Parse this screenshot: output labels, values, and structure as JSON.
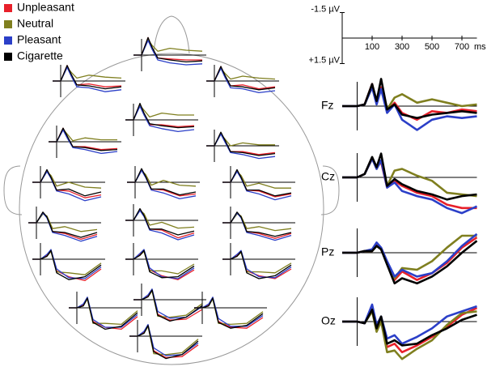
{
  "chart_data": {
    "type": "erp",
    "series": [
      {
        "name": "Unpleasant",
        "color": "#e8202a"
      },
      {
        "name": "Neutral",
        "color": "#7f7f1f"
      },
      {
        "name": "Pleasant",
        "color": "#2b3fc8"
      },
      {
        "name": "Cigarette",
        "color": "#000000"
      }
    ],
    "xlim": [
      -100,
      800
    ],
    "xticks": [
      100,
      300,
      500,
      700
    ],
    "x_unit": "ms",
    "ylim": [
      -1.5,
      1.5
    ],
    "yticks": [
      {
        "value": -1.5,
        "label": "-1.5 µV"
      },
      {
        "value": 1.5,
        "label": "+1.5 µV"
      }
    ],
    "y_inverted": true,
    "x": [
      -100,
      0,
      50,
      100,
      130,
      160,
      200,
      250,
      300,
      400,
      500,
      600,
      700,
      800
    ],
    "panels": [
      {
        "label": "Fz",
        "values": [
          [
            0,
            0,
            -0.1,
            -1.3,
            -0.2,
            -1.1,
            0.3,
            -0.2,
            0.4,
            0.8,
            0.3,
            0.4,
            0.2,
            0.3
          ],
          [
            0,
            0,
            -0.1,
            -1.1,
            -0.2,
            -1.0,
            0.2,
            -0.5,
            -0.7,
            -0.2,
            -0.4,
            -0.2,
            0,
            -0.1
          ],
          [
            0,
            0,
            -0.1,
            -1.1,
            -0.1,
            -1.0,
            0.4,
            -0.1,
            0.8,
            1.4,
            0.8,
            0.6,
            0.7,
            0.6
          ],
          [
            0,
            0,
            -0.1,
            -1.3,
            -0.3,
            -1.6,
            0.2,
            -0.1,
            0.5,
            0.7,
            0.5,
            0.4,
            0.3,
            0.4
          ]
        ]
      },
      {
        "label": "Cz",
        "values": [
          [
            0,
            0,
            -0.2,
            -1.1,
            -0.6,
            -0.9,
            0.6,
            0.2,
            0.5,
            0.9,
            1.1,
            1.6,
            1.8,
            1.8
          ],
          [
            0,
            0,
            -0.2,
            -1.1,
            -0.5,
            -1.0,
            0.5,
            -0.4,
            -0.5,
            -0.1,
            0.2,
            0.9,
            1.0,
            1.1
          ],
          [
            0,
            0,
            -0.2,
            -1.1,
            -0.5,
            -1.0,
            0.6,
            0.3,
            0.8,
            1.1,
            1.3,
            1.8,
            2.1,
            1.7
          ],
          [
            0,
            0,
            -0.2,
            -1.2,
            -0.6,
            -1.4,
            0.5,
            0.1,
            0.4,
            0.8,
            1.0,
            1.3,
            1.1,
            1.0
          ]
        ]
      },
      {
        "label": "Pz",
        "values": [
          [
            0,
            0,
            -0.1,
            -0.1,
            -0.5,
            -0.2,
            0.6,
            1.6,
            1.1,
            1.6,
            1.2,
            0.6,
            -0.3,
            -0.9
          ],
          [
            0,
            0,
            -0.1,
            -0.1,
            -0.4,
            -0.2,
            0.6,
            1.5,
            0.9,
            1.0,
            0.5,
            -0.3,
            -1.0,
            -1.0
          ],
          [
            0,
            0,
            -0.1,
            -0.2,
            -0.6,
            -0.3,
            0.5,
            1.4,
            1.0,
            1.4,
            1.2,
            0.5,
            -0.4,
            -1.1
          ],
          [
            0,
            0,
            -0.1,
            -0.1,
            -0.4,
            -0.2,
            0.7,
            1.8,
            1.5,
            1.8,
            1.4,
            0.8,
            0,
            -0.7
          ]
        ]
      },
      {
        "label": "Oz",
        "values": [
          [
            0,
            0,
            0.1,
            -0.8,
            0.5,
            -0.2,
            1.5,
            1.3,
            1.8,
            1.4,
            0.9,
            0.3,
            -0.4,
            -0.8
          ],
          [
            0,
            0,
            0.1,
            -0.6,
            0.6,
            0,
            1.8,
            1.7,
            2.2,
            1.6,
            1.1,
            0.2,
            -0.5,
            -0.6
          ],
          [
            0,
            0,
            0.1,
            -1.0,
            0.2,
            -0.3,
            1.0,
            0.8,
            1.3,
            0.9,
            0.4,
            -0.3,
            -0.6,
            -0.9
          ],
          [
            0,
            0,
            0.1,
            -0.7,
            0.4,
            -0.3,
            1.3,
            1.1,
            1.4,
            1.3,
            0.8,
            0.4,
            -0.1,
            -0.4
          ]
        ]
      }
    ],
    "head_x": [
      -100,
      0,
      80,
      130,
      200,
      350,
      550,
      750
    ],
    "head_panels": [
      [
        [
          0,
          0,
          -1.6,
          -0.6,
          0.4,
          0.3,
          0.6,
          0.5
        ],
        [
          0,
          0,
          -1.4,
          -0.9,
          -0.3,
          -0.6,
          -0.4,
          -0.3
        ],
        [
          0,
          0,
          -1.4,
          -0.5,
          0.6,
          0.7,
          1.1,
          0.9
        ],
        [
          0,
          0,
          -1.6,
          -0.7,
          0.4,
          0.5,
          0.8,
          0.6
        ]
      ],
      [
        [
          0,
          0,
          -1.8,
          -0.7,
          0.3,
          0.4,
          0.5,
          0.5
        ],
        [
          0,
          0,
          -1.6,
          -1.0,
          -0.4,
          -0.7,
          -0.5,
          -0.4
        ],
        [
          0,
          0,
          -1.5,
          -0.6,
          0.5,
          0.8,
          1.0,
          0.9
        ],
        [
          0,
          0,
          -1.8,
          -0.8,
          0.3,
          0.5,
          0.7,
          0.6
        ]
      ],
      [
        [
          0,
          0,
          -1.5,
          -0.5,
          0.5,
          0.4,
          0.8,
          0.6
        ],
        [
          0,
          0,
          -1.3,
          -0.8,
          -0.2,
          -0.5,
          -0.3,
          -0.2
        ],
        [
          0,
          0,
          -1.3,
          -0.4,
          0.7,
          0.8,
          1.2,
          1.0
        ],
        [
          0,
          0,
          -1.5,
          -0.6,
          0.5,
          0.6,
          0.9,
          0.7
        ]
      ],
      [
        [
          0,
          0,
          -1.4,
          -0.5,
          0.5,
          0.5,
          0.8,
          0.7
        ],
        [
          0,
          0,
          -1.3,
          -0.8,
          -0.1,
          -0.4,
          -0.2,
          -0.2
        ],
        [
          0,
          0,
          -1.2,
          -0.4,
          0.6,
          0.8,
          1.2,
          1.0
        ],
        [
          0,
          0,
          -1.4,
          -0.6,
          0.5,
          0.6,
          0.9,
          0.8
        ]
      ],
      [
        [
          0,
          0,
          -1.6,
          -0.6,
          0.5,
          0.5,
          0.7,
          0.6
        ],
        [
          0,
          0,
          -1.5,
          -1.0,
          -0.3,
          -0.7,
          -0.5,
          -0.5
        ],
        [
          0,
          0,
          -1.4,
          -0.5,
          0.6,
          0.9,
          1.2,
          1.0
        ],
        [
          0,
          0,
          -1.7,
          -0.7,
          0.4,
          0.6,
          0.8,
          0.7
        ]
      ],
      [
        [
          0,
          0,
          -1.3,
          -0.5,
          0.6,
          0.6,
          0.9,
          0.7
        ],
        [
          0,
          0,
          -1.2,
          -0.7,
          0,
          -0.3,
          -0.1,
          -0.1
        ],
        [
          0,
          0,
          -1.2,
          -0.4,
          0.7,
          0.9,
          1.3,
          1.1
        ],
        [
          0,
          0,
          -1.4,
          -0.6,
          0.6,
          0.7,
          1.0,
          0.8
        ]
      ],
      [
        [
          0,
          0,
          -1.2,
          -0.5,
          0.8,
          0.9,
          1.6,
          1.3
        ],
        [
          0,
          0,
          -1.1,
          -0.7,
          0.4,
          0,
          0.5,
          0.6
        ],
        [
          0,
          0,
          -1.1,
          -0.4,
          0.9,
          1.2,
          1.9,
          1.5
        ],
        [
          0,
          0,
          -1.3,
          -0.5,
          0.8,
          0.7,
          1.4,
          1.0
        ]
      ],
      [
        [
          0,
          0,
          -1.3,
          -0.6,
          0.7,
          0.8,
          1.4,
          1.2
        ],
        [
          0,
          0,
          -1.2,
          -0.8,
          0.3,
          -0.2,
          0.3,
          0.4
        ],
        [
          0,
          0,
          -1.2,
          -0.5,
          0.8,
          1.1,
          1.7,
          1.4
        ],
        [
          0,
          0,
          -1.4,
          -0.6,
          0.7,
          0.7,
          1.3,
          1.0
        ]
      ],
      [
        [
          0,
          0,
          -1.2,
          -0.5,
          0.8,
          0.9,
          1.5,
          1.2
        ],
        [
          0,
          0,
          -1.1,
          -0.7,
          0.4,
          0.1,
          0.6,
          0.6
        ],
        [
          0,
          0,
          -1.1,
          -0.4,
          0.9,
          1.2,
          1.8,
          1.4
        ],
        [
          0,
          0,
          -1.3,
          -0.5,
          0.8,
          0.8,
          1.4,
          1.1
        ]
      ],
      [
        [
          0,
          0,
          -1.0,
          -0.6,
          0.9,
          1.1,
          1.7,
          1.2
        ],
        [
          0,
          0,
          -0.9,
          -0.7,
          0.6,
          0.4,
          0.9,
          0.7
        ],
        [
          0,
          0,
          -1.0,
          -0.5,
          1.0,
          1.3,
          1.9,
          1.4
        ],
        [
          0,
          0,
          -1.1,
          -0.6,
          0.9,
          1.0,
          1.5,
          1.0
        ]
      ],
      [
        [
          0,
          0,
          -1.1,
          -0.5,
          0.9,
          1.0,
          1.8,
          1.3
        ],
        [
          0,
          0,
          -1.0,
          -0.7,
          0.5,
          0.2,
          0.8,
          0.7
        ],
        [
          0,
          0,
          -1.0,
          -0.4,
          1.0,
          1.3,
          2.0,
          1.5
        ],
        [
          0,
          0,
          -1.2,
          -0.5,
          0.9,
          0.9,
          1.5,
          1.1
        ]
      ],
      [
        [
          0,
          0,
          -1.0,
          -0.6,
          0.9,
          1.1,
          1.6,
          1.1
        ],
        [
          0,
          0,
          -0.9,
          -0.7,
          0.6,
          0.4,
          0.8,
          0.6
        ],
        [
          0,
          0,
          -1.0,
          -0.5,
          1.0,
          1.3,
          1.8,
          1.3
        ],
        [
          0,
          0,
          -1.1,
          -0.6,
          0.9,
          1.0,
          1.4,
          1.0
        ]
      ],
      [
        [
          0,
          0,
          -0.4,
          -0.9,
          1.2,
          1.8,
          2.2,
          1.0
        ],
        [
          0,
          0,
          -0.3,
          -0.8,
          1.3,
          1.4,
          1.6,
          0.4
        ],
        [
          0,
          0,
          -0.5,
          -1.0,
          1.0,
          1.9,
          2.0,
          0.8
        ],
        [
          0,
          0,
          -0.3,
          -0.9,
          1.4,
          2.1,
          1.8,
          0.6
        ]
      ],
      [
        [
          0,
          0,
          -0.5,
          -0.9,
          1.1,
          1.7,
          2.1,
          1.1
        ],
        [
          0,
          0,
          -0.4,
          -0.8,
          1.2,
          1.2,
          1.5,
          0.5
        ],
        [
          0,
          0,
          -0.6,
          -1.0,
          0.9,
          1.8,
          2.0,
          0.9
        ],
        [
          0,
          0,
          -0.4,
          -0.9,
          1.3,
          1.9,
          1.8,
          0.7
        ]
      ],
      [
        [
          0,
          0,
          -0.4,
          -0.8,
          1.2,
          1.7,
          2.0,
          1.0
        ],
        [
          0,
          0,
          -0.3,
          -0.7,
          1.3,
          1.3,
          1.4,
          0.4
        ],
        [
          0,
          0,
          -0.5,
          -0.9,
          1.0,
          1.8,
          1.9,
          0.8
        ],
        [
          0,
          0,
          -0.3,
          -0.8,
          1.4,
          2.0,
          1.7,
          0.6
        ]
      ],
      [
        [
          0,
          0,
          -0.3,
          -1.0,
          1.4,
          2.0,
          2.2,
          0.9
        ],
        [
          0,
          0,
          -0.2,
          -0.9,
          1.6,
          1.6,
          1.7,
          0.3
        ],
        [
          0,
          0,
          -0.4,
          -1.1,
          1.2,
          2.0,
          2.0,
          0.7
        ],
        [
          0,
          0,
          -0.2,
          -1.0,
          1.5,
          2.2,
          1.9,
          0.5
        ]
      ],
      [
        [
          0,
          0,
          -0.4,
          -1.0,
          1.5,
          2.1,
          2.0,
          1.0
        ],
        [
          0,
          0,
          -0.3,
          -0.9,
          1.7,
          1.8,
          1.6,
          0.4
        ],
        [
          0,
          0,
          -0.5,
          -1.1,
          1.2,
          1.9,
          1.8,
          0.7
        ],
        [
          0,
          0,
          -0.3,
          -1.0,
          1.6,
          2.2,
          1.8,
          0.6
        ]
      ],
      [
        [
          0,
          0,
          -0.3,
          -1.0,
          1.4,
          2.0,
          2.1,
          1.0
        ],
        [
          0,
          0,
          -0.2,
          -0.9,
          1.6,
          1.7,
          1.6,
          0.4
        ],
        [
          0,
          0,
          -0.4,
          -1.1,
          1.1,
          1.9,
          1.9,
          0.8
        ],
        [
          0,
          0,
          -0.2,
          -1.0,
          1.5,
          2.1,
          1.8,
          0.6
        ]
      ],
      [
        [
          0,
          0,
          -0.4,
          -1.1,
          1.5,
          2.2,
          2.1,
          0.9
        ],
        [
          0,
          0,
          -0.3,
          -1.0,
          1.8,
          1.9,
          1.7,
          0.3
        ],
        [
          0,
          0,
          -0.5,
          -1.2,
          1.2,
          2.0,
          1.9,
          0.7
        ],
        [
          0,
          0,
          -0.3,
          -1.1,
          1.6,
          2.3,
          1.9,
          0.5
        ]
      ]
    ]
  }
}
